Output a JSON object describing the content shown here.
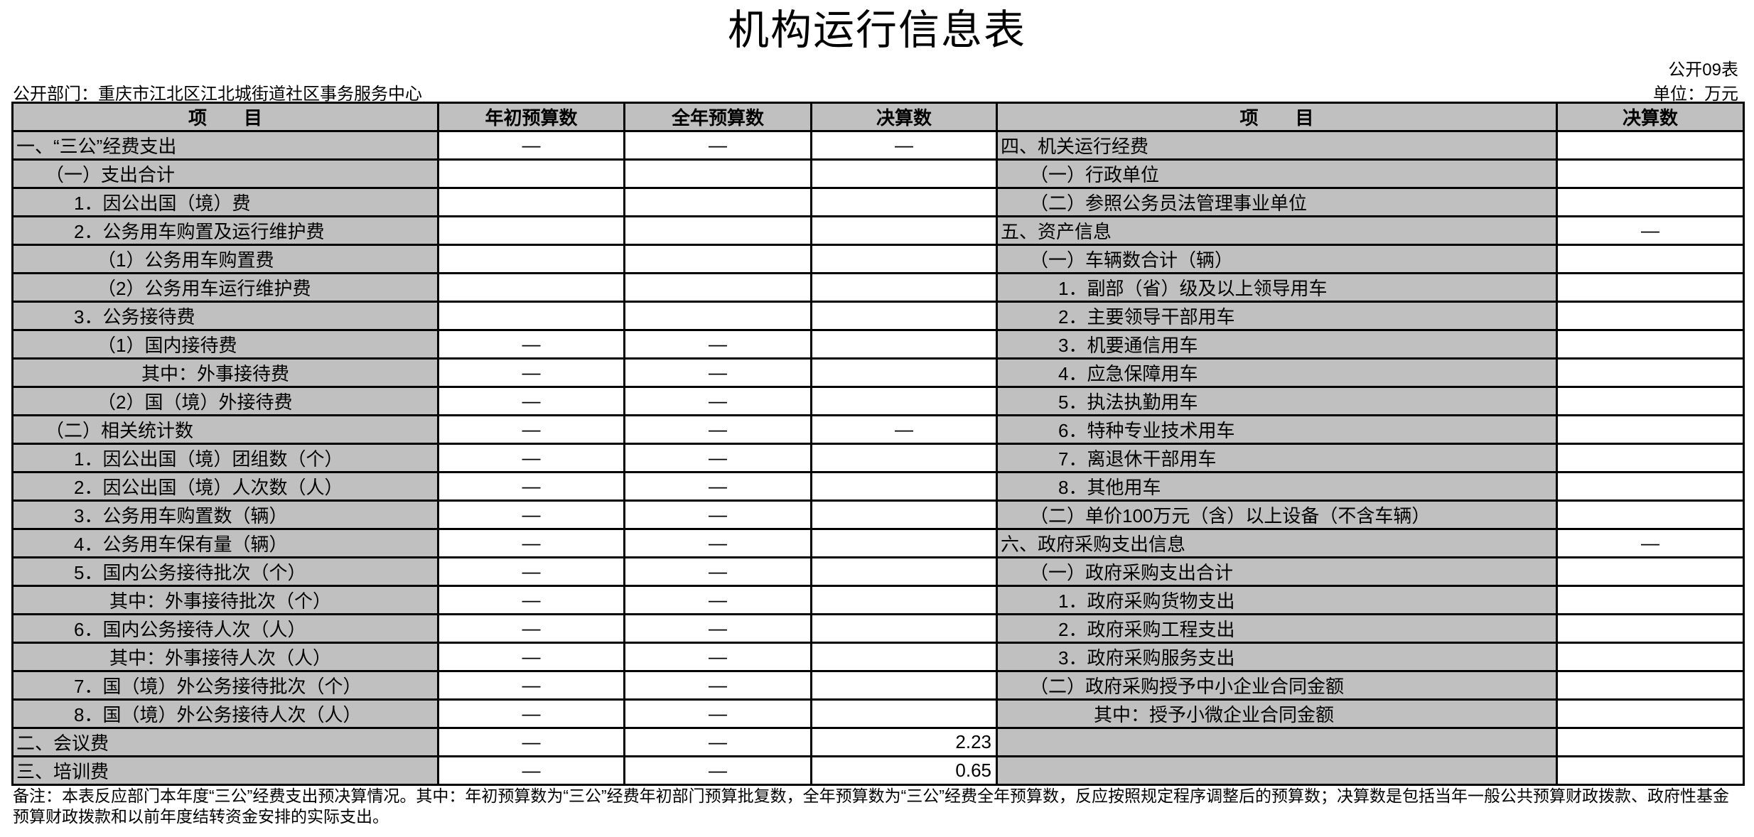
{
  "title": "机构运行信息表",
  "table_no": "公开09表",
  "unit": "单位：万元",
  "department": "公开部门：重庆市江北区江北城街道社区事务服务中心",
  "headers": {
    "left_item": "项　　目",
    "initial_budget": "年初预算数",
    "annual_budget": "全年预算数",
    "final_account": "决算数",
    "right_item": "项　　目",
    "right_final_account": "决算数"
  },
  "left_rows": [
    {
      "label": "一、“三公”经费支出",
      "initial": "—",
      "annual": "—",
      "final": "—"
    },
    {
      "label": "（一）支出合计",
      "initial": "",
      "annual": "",
      "final": ""
    },
    {
      "label": "1．因公出国（境）费",
      "initial": "",
      "annual": "",
      "final": ""
    },
    {
      "label": "2．公务用车购置及运行维护费",
      "initial": "",
      "annual": "",
      "final": ""
    },
    {
      "label": "（1）公务用车购置费",
      "initial": "",
      "annual": "",
      "final": ""
    },
    {
      "label": "（2）公务用车运行维护费",
      "initial": "",
      "annual": "",
      "final": ""
    },
    {
      "label": "3．公务接待费",
      "initial": "",
      "annual": "",
      "final": ""
    },
    {
      "label": "（1）国内接待费",
      "initial": "—",
      "annual": "—",
      "final": ""
    },
    {
      "label": "其中：外事接待费",
      "initial": "—",
      "annual": "—",
      "final": ""
    },
    {
      "label": "（2）国（境）外接待费",
      "initial": "—",
      "annual": "—",
      "final": ""
    },
    {
      "label": "（二）相关统计数",
      "initial": "—",
      "annual": "—",
      "final": "—"
    },
    {
      "label": "1．因公出国（境）团组数（个）",
      "initial": "—",
      "annual": "—",
      "final": ""
    },
    {
      "label": "2．因公出国（境）人次数（人）",
      "initial": "—",
      "annual": "—",
      "final": ""
    },
    {
      "label": "3．公务用车购置数（辆）",
      "initial": "—",
      "annual": "—",
      "final": ""
    },
    {
      "label": "4．公务用车保有量（辆）",
      "initial": "—",
      "annual": "—",
      "final": ""
    },
    {
      "label": "5．国内公务接待批次（个）",
      "initial": "—",
      "annual": "—",
      "final": ""
    },
    {
      "label": "其中：外事接待批次（个）",
      "initial": "—",
      "annual": "—",
      "final": ""
    },
    {
      "label": "6．国内公务接待人次（人）",
      "initial": "—",
      "annual": "—",
      "final": ""
    },
    {
      "label": "其中：外事接待人次（人）",
      "initial": "—",
      "annual": "—",
      "final": ""
    },
    {
      "label": "7．国（境）外公务接待批次（个）",
      "initial": "—",
      "annual": "—",
      "final": ""
    },
    {
      "label": "8．国（境）外公务接待人次（人）",
      "initial": "—",
      "annual": "—",
      "final": ""
    },
    {
      "label": "二、会议费",
      "initial": "—",
      "annual": "—",
      "final": "2.23"
    },
    {
      "label": "三、培训费",
      "initial": "—",
      "annual": "—",
      "final": "0.65"
    }
  ],
  "right_rows": [
    {
      "label": "四、机关运行经费",
      "final": ""
    },
    {
      "label": "（一）行政单位",
      "final": ""
    },
    {
      "label": "（二）参照公务员法管理事业单位",
      "final": ""
    },
    {
      "label": "五、资产信息",
      "final": "—"
    },
    {
      "label": "（一）车辆数合计（辆）",
      "final": ""
    },
    {
      "label": "1．副部（省）级及以上领导用车",
      "final": ""
    },
    {
      "label": "2．主要领导干部用车",
      "final": ""
    },
    {
      "label": "3．机要通信用车",
      "final": ""
    },
    {
      "label": "4．应急保障用车",
      "final": ""
    },
    {
      "label": "5．执法执勤用车",
      "final": ""
    },
    {
      "label": "6．特种专业技术用车",
      "final": ""
    },
    {
      "label": "7．离退休干部用车",
      "final": ""
    },
    {
      "label": "8．其他用车",
      "final": ""
    },
    {
      "label": "（二）单价100万元（含）以上设备（不含车辆）",
      "final": ""
    },
    {
      "label": "六、政府采购支出信息",
      "final": "—"
    },
    {
      "label": "（一）政府采购支出合计",
      "final": ""
    },
    {
      "label": "1．政府采购货物支出",
      "final": ""
    },
    {
      "label": "2．政府采购工程支出",
      "final": ""
    },
    {
      "label": "3．政府采购服务支出",
      "final": ""
    },
    {
      "label": "（二）政府采购授予中小企业合同金额",
      "final": ""
    },
    {
      "label": "其中：授予小微企业合同金额",
      "final": ""
    },
    {
      "label": "",
      "final": ""
    },
    {
      "label": "",
      "final": ""
    }
  ],
  "note": "备注：本表反应部门本年度“三公”经费支出预决算情况。其中：年初预算数为“三公”经费年初部门预算批复数，全年预算数为“三公”经费全年预算数，反应按照规定程序调整后的预算数；决算数是包括当年一般公共预算财政拨款、政府性基金预算财政拨款和以前年度结转资金安排的实际支出。",
  "colors": {
    "item_bg": "#c0c0c0",
    "value_bg": "#ffffff",
    "border": "#000000"
  }
}
